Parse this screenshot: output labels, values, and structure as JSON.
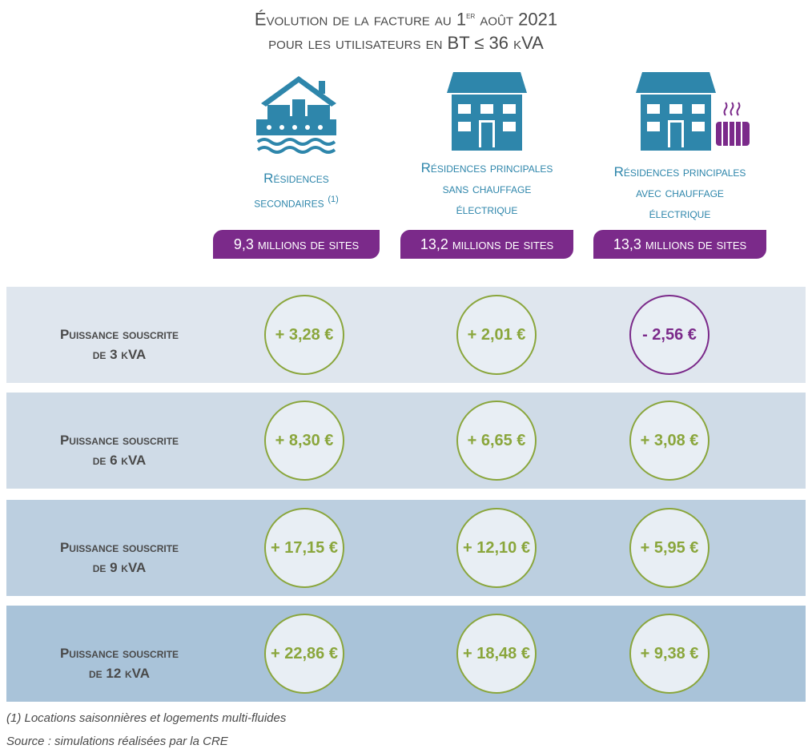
{
  "title": {
    "line1_pre": "Évolution de la facture au 1",
    "line1_sup": "er",
    "line1_post": " août 2021",
    "line2": "pour les utilisateurs en BT ≤ 36 kVA"
  },
  "columns": [
    {
      "label_lines": [
        "Résidences",
        "secondaires"
      ],
      "footnote_mark": "(1)",
      "sites": "9,3 millions de sites",
      "icon": "house-on-water-icon"
    },
    {
      "label_lines": [
        "Résidences principales",
        "sans chauffage",
        "électrique"
      ],
      "sites": "13,2 millions de sites",
      "icon": "building-icon"
    },
    {
      "label_lines": [
        "Résidences principales",
        "avec chauffage",
        "électrique"
      ],
      "sites": "13,3 millions de sites",
      "icon": "building-with-radiator-icon"
    }
  ],
  "chart_data": {
    "type": "table",
    "title": "Évolution de la facture au 1er août 2021 pour les utilisateurs en BT ≤ 36 kVA",
    "columns": [
      "Résidences secondaires (1)",
      "Résidences principales sans chauffage électrique",
      "Résidences principales avec chauffage électrique"
    ],
    "rows": [
      {
        "label_lines": [
          "Puissance souscrite",
          "de 3 kVA"
        ],
        "values": [
          "+ 3,28 €",
          "+ 2,01 €",
          "- 2,56 €"
        ],
        "numeric": [
          3.28,
          2.01,
          -2.56
        ]
      },
      {
        "label_lines": [
          "Puissance souscrite",
          "de 6 kVA"
        ],
        "values": [
          "+ 8,30 €",
          "+ 6,65 €",
          "+ 3,08 €"
        ],
        "numeric": [
          8.3,
          6.65,
          3.08
        ]
      },
      {
        "label_lines": [
          "Puissance souscrite",
          "de 9 kVA"
        ],
        "values": [
          "+ 17,15 €",
          "+ 12,10 €",
          "+ 5,95 €"
        ],
        "numeric": [
          17.15,
          12.1,
          5.95
        ]
      },
      {
        "label_lines": [
          "Puissance souscrite",
          "de 12 kVA"
        ],
        "values": [
          "+ 22,86 €",
          "+ 18,48 €",
          "+ 9,38 €"
        ],
        "numeric": [
          22.86,
          18.48,
          9.38
        ]
      }
    ]
  },
  "colors": {
    "row_backgrounds": [
      "#dfe6ee",
      "#cfdbe7",
      "#bccfe0",
      "#a9c3d9"
    ],
    "positive": "#8aa63c",
    "negative": "#7b2a8a",
    "icon": "#2e86ab",
    "badge": "#7b2a8a"
  },
  "notes": {
    "footnote": "(1) Locations saisonnières et logements multi-fluides",
    "source": "Source : simulations réalisées par la CRE"
  }
}
